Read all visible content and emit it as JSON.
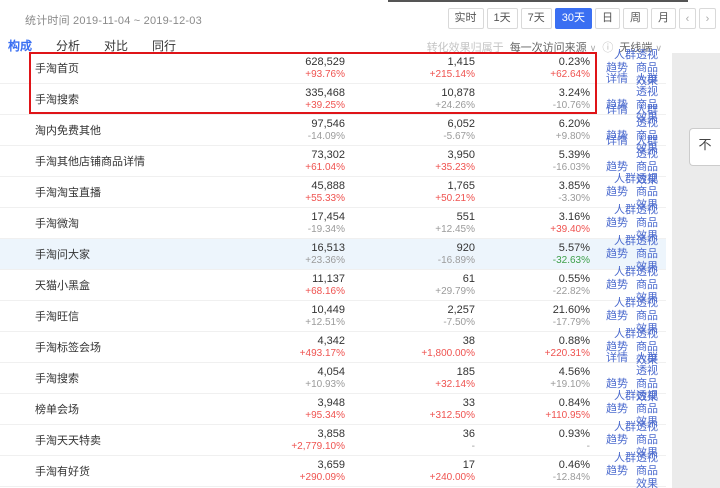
{
  "header": {
    "stats_period": "统计时间 2019-11-04 ~ 2019-12-03",
    "time_buttons": [
      "实时",
      "1天",
      "7天",
      "30天",
      "日",
      "周",
      "月"
    ],
    "selected_time": "30天",
    "prev_arrow": "‹",
    "next_arrow": "›"
  },
  "tabs": {
    "items": [
      "构成",
      "分析",
      "对比",
      "同行"
    ],
    "active": "构成"
  },
  "filters": {
    "attribution_label": "转化效果归属于",
    "attribution_value": "每一次访问来源",
    "caret": "∨",
    "info_icon": "ⓘ",
    "terminal_value": "无线端"
  },
  "side_note": {
    "text": "不"
  },
  "colors": {
    "accent": "#3a6ff2",
    "increase_red": "#ef5350",
    "decrease_green": "#3fa04a",
    "neutral_gray": "#9b9b9b",
    "link_blue": "#4c6bce",
    "annotation_red": "#df1418"
  },
  "table": {
    "link_labels": {
      "detail": "详情",
      "audience": "人群透视",
      "trend": "趋势",
      "product": "商品效果"
    },
    "rows": [
      {
        "name": "手淘首页",
        "v1": "628,529",
        "d1": "+93.76%",
        "c1": "r",
        "v2": "1,415",
        "d2": "+215.14%",
        "c2": "r",
        "v3": "0.23%",
        "d3": "+62.64%",
        "c3": "r",
        "detail": false,
        "highlighted": false
      },
      {
        "name": "手淘搜索",
        "v1": "335,468",
        "d1": "+39.25%",
        "c1": "r",
        "v2": "10,878",
        "d2": "+24.26%",
        "c2": "n",
        "v3": "3.24%",
        "d3": "-10.76%",
        "c3": "n",
        "detail": true,
        "highlighted": false
      },
      {
        "name": "淘内免费其他",
        "v1": "97,546",
        "d1": "-14.09%",
        "c1": "n",
        "v2": "6,052",
        "d2": "-5.67%",
        "c2": "n",
        "v3": "6.20%",
        "d3": "+9.80%",
        "c3": "n",
        "detail": true,
        "highlighted": false
      },
      {
        "name": "手淘其他店铺商品详情",
        "v1": "73,302",
        "d1": "+61.04%",
        "c1": "r",
        "v2": "3,950",
        "d2": "+35.23%",
        "c2": "r",
        "v3": "5.39%",
        "d3": "-16.03%",
        "c3": "n",
        "detail": true,
        "highlighted": false
      },
      {
        "name": "手淘淘宝直播",
        "v1": "45,888",
        "d1": "+55.33%",
        "c1": "r",
        "v2": "1,765",
        "d2": "+50.21%",
        "c2": "r",
        "v3": "3.85%",
        "d3": "-3.30%",
        "c3": "n",
        "detail": false,
        "highlighted": false
      },
      {
        "name": "手淘微淘",
        "v1": "17,454",
        "d1": "-19.34%",
        "c1": "n",
        "v2": "551",
        "d2": "+12.45%",
        "c2": "n",
        "v3": "3.16%",
        "d3": "+39.40%",
        "c3": "r",
        "detail": false,
        "highlighted": false
      },
      {
        "name": "手淘问大家",
        "v1": "16,513",
        "d1": "+23.36%",
        "c1": "n",
        "v2": "920",
        "d2": "-16.89%",
        "c2": "n",
        "v3": "5.57%",
        "d3": "-32.63%",
        "c3": "g",
        "detail": false,
        "highlighted": true
      },
      {
        "name": "天猫小黑盒",
        "v1": "11,137",
        "d1": "+68.16%",
        "c1": "r",
        "v2": "61",
        "d2": "+29.79%",
        "c2": "n",
        "v3": "0.55%",
        "d3": "-22.82%",
        "c3": "n",
        "detail": false,
        "highlighted": false
      },
      {
        "name": "手淘旺信",
        "v1": "10,449",
        "d1": "+12.51%",
        "c1": "n",
        "v2": "2,257",
        "d2": "-7.50%",
        "c2": "n",
        "v3": "21.60%",
        "d3": "-17.79%",
        "c3": "n",
        "detail": false,
        "highlighted": false
      },
      {
        "name": "手淘标签会场",
        "v1": "4,342",
        "d1": "+493.17%",
        "c1": "r",
        "v2": "38",
        "d2": "+1,800.00%",
        "c2": "r",
        "v3": "0.88%",
        "d3": "+220.31%",
        "c3": "r",
        "detail": false,
        "highlighted": false
      },
      {
        "name": "手淘搜索",
        "v1": "4,054",
        "d1": "+10.93%",
        "c1": "n",
        "v2": "185",
        "d2": "+32.14%",
        "c2": "r",
        "v3": "4.56%",
        "d3": "+19.10%",
        "c3": "n",
        "detail": true,
        "highlighted": false
      },
      {
        "name": "榜单会场",
        "v1": "3,948",
        "d1": "+95.34%",
        "c1": "r",
        "v2": "33",
        "d2": "+312.50%",
        "c2": "r",
        "v3": "0.84%",
        "d3": "+110.95%",
        "c3": "r",
        "detail": false,
        "highlighted": false
      },
      {
        "name": "手淘天天特卖",
        "v1": "3,858",
        "d1": "+2,779.10%",
        "c1": "r",
        "v2": "36",
        "d2": "-",
        "c2": "n",
        "v3": "0.93%",
        "d3": "-",
        "c3": "n",
        "detail": false,
        "highlighted": false
      },
      {
        "name": "手淘有好货",
        "v1": "3,659",
        "d1": "+290.09%",
        "c1": "r",
        "v2": "17",
        "d2": "+240.00%",
        "c2": "r",
        "v3": "0.46%",
        "d3": "-12.84%",
        "c3": "n",
        "detail": false,
        "highlighted": false
      }
    ]
  }
}
